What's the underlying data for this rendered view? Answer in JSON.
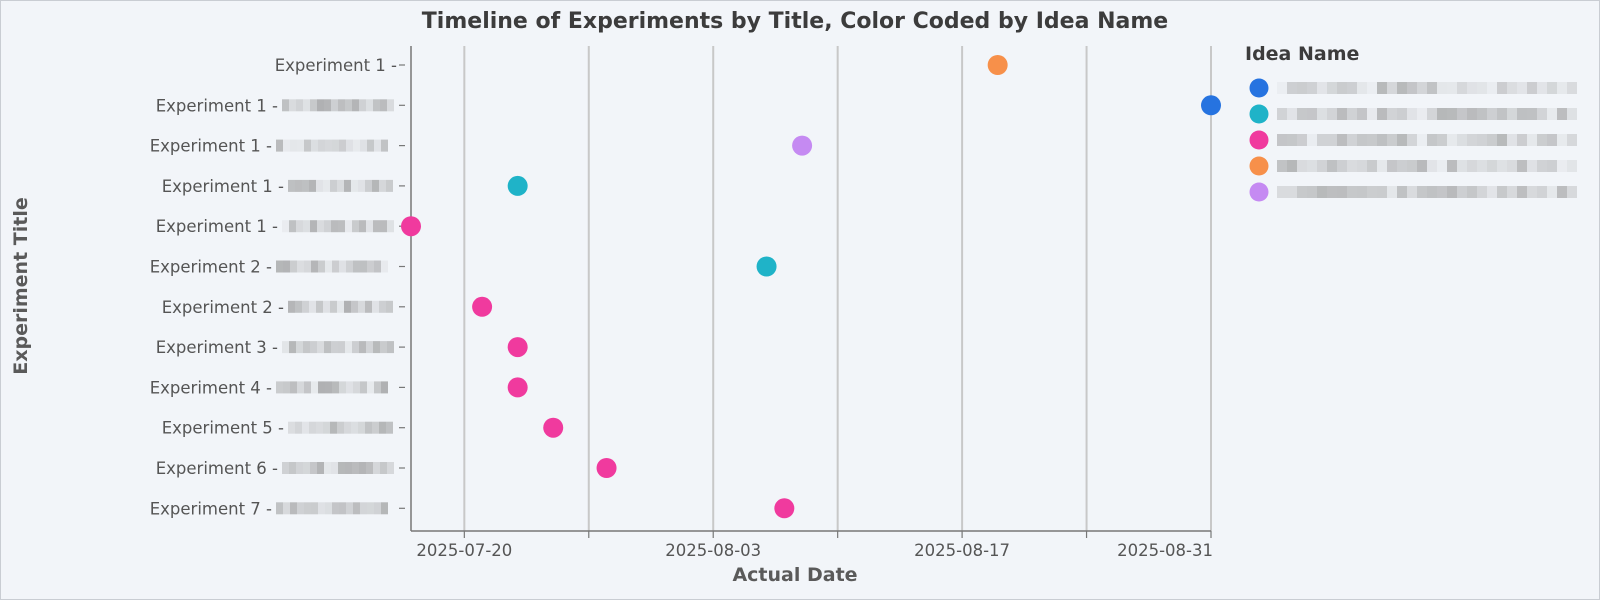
{
  "chart_data": {
    "type": "scatter",
    "title": "Timeline of Experiments by Title, Color Coded by Idea Name",
    "xlabel": "Actual Date",
    "ylabel": "Experiment Title",
    "x_ticks": [
      "2025-07-20",
      "2025-08-03",
      "2025-08-17",
      "2025-08-31"
    ],
    "xlim": [
      "2025-07-17",
      "2025-08-31"
    ],
    "grid": true,
    "legend": {
      "title": "Idea Name",
      "placement": "right",
      "entries": [
        {
          "color": "#2673e0"
        },
        {
          "color": "#1fb3c8"
        },
        {
          "color": "#f03a9e"
        },
        {
          "color": "#f7904a"
        },
        {
          "color": "#c58af2"
        }
      ]
    },
    "categories": [
      "Experiment 1 -",
      "Experiment 1 -",
      "Experiment 1 -",
      "Experiment 1 -",
      "Experiment 1 -",
      "Experiment 2 -",
      "Experiment 2 -",
      "Experiment 3 -",
      "Experiment 4 -",
      "Experiment 5 -",
      "Experiment 6 -",
      "Experiment 7 -"
    ],
    "points": [
      {
        "y": 0,
        "x": "2025-08-19",
        "color": "#f7904a"
      },
      {
        "y": 1,
        "x": "2025-08-31",
        "color": "#2673e0"
      },
      {
        "y": 2,
        "x": "2025-08-08",
        "color": "#c58af2"
      },
      {
        "y": 3,
        "x": "2025-07-23",
        "color": "#1fb3c8"
      },
      {
        "y": 4,
        "x": "2025-07-17",
        "color": "#f03a9e"
      },
      {
        "y": 5,
        "x": "2025-08-06",
        "color": "#1fb3c8"
      },
      {
        "y": 6,
        "x": "2025-07-21",
        "color": "#f03a9e"
      },
      {
        "y": 7,
        "x": "2025-07-23",
        "color": "#f03a9e"
      },
      {
        "y": 8,
        "x": "2025-07-23",
        "color": "#f03a9e"
      },
      {
        "y": 9,
        "x": "2025-07-25",
        "color": "#f03a9e"
      },
      {
        "y": 10,
        "x": "2025-07-28",
        "color": "#f03a9e"
      },
      {
        "y": 11,
        "x": "2025-08-07",
        "color": "#f03a9e"
      }
    ]
  }
}
